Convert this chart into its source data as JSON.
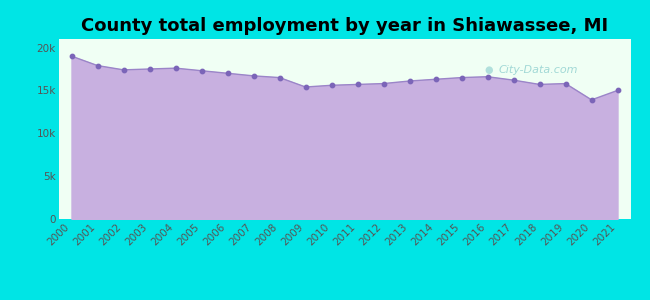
{
  "title": "County total employment by year in Shiawassee, MI",
  "background_color": "#00e5e5",
  "plot_bg_color": "#f0fff4",
  "fill_color": "#c8b0e0",
  "line_color": "#9b85c8",
  "dot_color": "#7b65b8",
  "years": [
    2000,
    2001,
    2002,
    2003,
    2004,
    2005,
    2006,
    2007,
    2008,
    2009,
    2010,
    2011,
    2012,
    2013,
    2014,
    2015,
    2016,
    2017,
    2018,
    2019,
    2020,
    2021
  ],
  "values": [
    19000,
    17900,
    17400,
    17500,
    17600,
    17300,
    17000,
    16700,
    16500,
    15400,
    15600,
    15700,
    15800,
    16100,
    16300,
    16500,
    16600,
    16200,
    15700,
    15800,
    13900,
    15000
  ],
  "ylim": [
    0,
    21000
  ],
  "yticks": [
    0,
    5000,
    10000,
    15000,
    20000
  ],
  "ytick_labels": [
    "0",
    "5k",
    "10k",
    "15k",
    "20k"
  ],
  "watermark": "City-Data.com",
  "title_fontsize": 13,
  "tick_fontsize": 7.5
}
